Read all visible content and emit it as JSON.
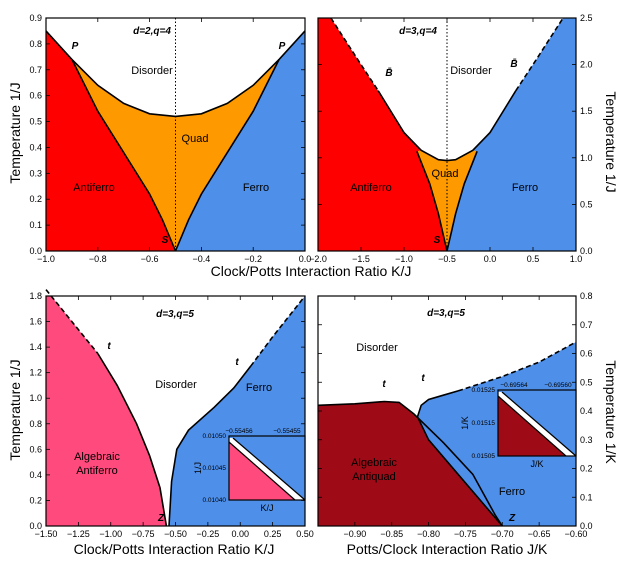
{
  "colors": {
    "antiferro": "#ff0000",
    "quad": "#ff9900",
    "ferro": "#4e8fe9",
    "disorder": "#ffffff",
    "algebraic_antiferro": "#ff4a7d",
    "algebraic_antiquad": "#9e0b17"
  },
  "chart_data": [
    {
      "type": "area",
      "panel": "top-left",
      "title": "d=2,q=4",
      "xlabel": "",
      "ylabel": "Temperature 1/J",
      "xlim": [
        -1.0,
        0.0
      ],
      "ylim": [
        0.0,
        0.9
      ],
      "xticks": [
        "−1.0",
        "−0.8",
        "−0.6",
        "−0.4",
        "−0.2",
        "0.0"
      ],
      "yticks": [
        "0.0",
        "0.1",
        "0.2",
        "0.3",
        "0.4",
        "0.5",
        "0.6",
        "0.7",
        "0.8",
        "0.9"
      ],
      "regions": [
        "Disorder",
        "Quad",
        "Antiferro",
        "Ferro"
      ],
      "point_labels": [
        "P",
        "P",
        "S"
      ],
      "boundaries": {
        "upper": [
          [
            -1.0,
            0.85
          ],
          [
            -0.9,
            0.74
          ],
          [
            -0.8,
            0.64
          ],
          [
            -0.7,
            0.57
          ],
          [
            -0.6,
            0.53
          ],
          [
            -0.5,
            0.52
          ],
          [
            -0.4,
            0.53
          ],
          [
            -0.3,
            0.57
          ],
          [
            -0.2,
            0.64
          ],
          [
            -0.1,
            0.74
          ],
          [
            0.0,
            0.85
          ]
        ],
        "left_quad": [
          [
            -0.9,
            0.74
          ],
          [
            -0.8,
            0.54
          ],
          [
            -0.7,
            0.38
          ],
          [
            -0.6,
            0.22
          ],
          [
            -0.55,
            0.12
          ],
          [
            -0.5,
            0.0
          ]
        ],
        "right_quad": [
          [
            -0.1,
            0.74
          ],
          [
            -0.2,
            0.54
          ],
          [
            -0.3,
            0.38
          ],
          [
            -0.4,
            0.22
          ],
          [
            -0.45,
            0.12
          ],
          [
            -0.5,
            0.0
          ]
        ]
      },
      "vertical_line_x": -0.5
    },
    {
      "type": "area",
      "panel": "top-right",
      "title": "d=3,q=4",
      "xlabel": "",
      "ylabel": "Temperature 1/J",
      "xlim": [
        -2.0,
        1.0
      ],
      "ylim": [
        0.0,
        2.5
      ],
      "xticks": [
        "−2.0",
        "−1.5",
        "−1.0",
        "−0.5",
        "0.0",
        "0.5",
        "1.0"
      ],
      "yticks": [
        "0.0",
        "0.5",
        "1.0",
        "1.5",
        "2.0",
        "2.5"
      ],
      "regions": [
        "Disorder",
        "Quad",
        "Antiferro",
        "Ferro"
      ],
      "point_labels": [
        "B̄",
        "B̄",
        "S"
      ],
      "boundaries": {
        "left_dashed": [
          [
            -1.85,
            2.5
          ],
          [
            -1.5,
            2.0
          ],
          [
            -1.3,
            1.72
          ]
        ],
        "left_solid": [
          [
            -1.3,
            1.72
          ],
          [
            -1.0,
            1.27
          ],
          [
            -0.8,
            1.08
          ],
          [
            -0.6,
            0.98
          ],
          [
            -0.5,
            0.97
          ]
        ],
        "right_solid": [
          [
            -0.5,
            0.97
          ],
          [
            -0.4,
            0.98
          ],
          [
            -0.2,
            1.08
          ],
          [
            0.0,
            1.27
          ],
          [
            0.3,
            1.72
          ]
        ],
        "right_dashed": [
          [
            0.3,
            1.72
          ],
          [
            0.5,
            2.0
          ],
          [
            0.85,
            2.5
          ]
        ],
        "left_quad": [
          [
            -0.85,
            1.07
          ],
          [
            -0.7,
            0.72
          ],
          [
            -0.6,
            0.4
          ],
          [
            -0.55,
            0.2
          ],
          [
            -0.5,
            0.0
          ]
        ],
        "right_quad": [
          [
            -0.15,
            1.07
          ],
          [
            -0.3,
            0.72
          ],
          [
            -0.4,
            0.4
          ],
          [
            -0.45,
            0.2
          ],
          [
            -0.5,
            0.0
          ]
        ]
      },
      "vertical_line_x": -0.5
    },
    {
      "type": "area",
      "panel": "bottom-left",
      "title": "d=3,q=5",
      "xlabel": "Clock/Potts Interaction Ratio K/J",
      "ylabel": "Temperature 1/J",
      "xlim": [
        -1.5,
        0.5
      ],
      "ylim": [
        0.0,
        1.8
      ],
      "xticks": [
        "−1.50",
        "−1.25",
        "−1.00",
        "−0.75",
        "−0.50",
        "−0.25",
        "0.00",
        "0.25",
        "0.50"
      ],
      "yticks": [
        "0.0",
        "0.2",
        "0.4",
        "0.6",
        "0.8",
        "1.0",
        "1.2",
        "1.4",
        "1.6",
        "1.8"
      ],
      "regions": [
        "Disorder",
        "Ferro",
        "Algebraic",
        "Antiferro"
      ],
      "point_labels": [
        "t",
        "t",
        "Z"
      ],
      "boundaries": {
        "left_dashed": [
          [
            -1.5,
            1.85
          ],
          [
            -1.3,
            1.6
          ],
          [
            -1.1,
            1.35
          ]
        ],
        "left_solid": [
          [
            -1.1,
            1.35
          ],
          [
            -0.95,
            1.1
          ],
          [
            -0.8,
            0.8
          ],
          [
            -0.7,
            0.55
          ],
          [
            -0.62,
            0.3
          ],
          [
            -0.57,
            0.0
          ]
        ],
        "ferro_solid": [
          [
            -0.55,
            0.0
          ],
          [
            -0.53,
            0.35
          ],
          [
            -0.49,
            0.6
          ],
          [
            -0.4,
            0.75
          ],
          [
            -0.2,
            0.93
          ],
          [
            -0.05,
            1.08
          ],
          [
            0.08,
            1.25
          ]
        ],
        "ferro_dashed": [
          [
            0.08,
            1.25
          ],
          [
            0.25,
            1.48
          ],
          [
            0.5,
            1.8
          ]
        ]
      },
      "inset": {
        "xlabel": "K/J",
        "ylabel": "1/J",
        "xticks": [
          "−0.55456",
          "−0.55455"
        ],
        "yticks": [
          "0.01040",
          "0.01045",
          "0.01050"
        ]
      }
    },
    {
      "type": "area",
      "panel": "bottom-right",
      "title": "d=3,q=5",
      "xlabel": "Potts/Clock Interaction Ratio J/K",
      "ylabel": "Temperature 1/K",
      "xlim": [
        -0.95,
        -0.6
      ],
      "ylim": [
        0.0,
        0.8
      ],
      "xticks": [
        "−0.90",
        "−0.85",
        "−0.80",
        "−0.75",
        "−0.70",
        "−0.65",
        "−0.60"
      ],
      "yticks": [
        "0.0",
        "0.1",
        "0.2",
        "0.3",
        "0.4",
        "0.5",
        "0.6",
        "0.7",
        "0.8"
      ],
      "regions": [
        "Disorder",
        "Ferro",
        "Algebraic",
        "Antiquad"
      ],
      "point_labels": [
        "t",
        "t",
        "Z"
      ],
      "boundaries": {
        "antiquad_top": [
          [
            -0.95,
            0.42
          ],
          [
            -0.9,
            0.425
          ],
          [
            -0.86,
            0.433
          ],
          [
            -0.84,
            0.43
          ],
          [
            -0.82,
            0.39
          ],
          [
            -0.78,
            0.29
          ],
          [
            -0.74,
            0.18
          ],
          [
            -0.71,
            0.04
          ],
          [
            -0.7,
            0.0
          ]
        ],
        "ferro_solid": [
          [
            -0.7,
            0.0
          ],
          [
            -0.76,
            0.18
          ],
          [
            -0.8,
            0.3
          ],
          [
            -0.815,
            0.38
          ],
          [
            -0.81,
            0.42
          ],
          [
            -0.8,
            0.44
          ],
          [
            -0.78,
            0.455
          ],
          [
            -0.76,
            0.47
          ]
        ],
        "ferro_dashed": [
          [
            -0.76,
            0.47
          ],
          [
            -0.7,
            0.52
          ],
          [
            -0.65,
            0.57
          ],
          [
            -0.6,
            0.64
          ]
        ]
      },
      "inset": {
        "xlabel": "J/K",
        "ylabel": "1/K",
        "xticks": [
          "−0.69564",
          "−0.69560"
        ],
        "yticks": [
          "0.01505",
          "0.01515",
          "0.01525"
        ]
      }
    }
  ],
  "text": {
    "tl_title": "d=2,q=4",
    "tr_title": "d=3,q=4",
    "bl_title": "d=3,q=5",
    "br_title": "d=3,q=5",
    "disorder": "Disorder",
    "quad": "Quad",
    "antiferro": "Antiferro",
    "ferro": "Ferro",
    "algebraic": "Algebraic",
    "antiquad": "Antiquad",
    "P": "P",
    "S": "S",
    "Bbar": "B̄",
    "t": "t",
    "Z": "Z",
    "ylab_1J": "Temperature 1/J",
    "ylab_1K": "Temperature 1/K",
    "xlab_top": "Clock/Potts Interaction Ratio K/J",
    "xlab_bl": "Clock/Potts Interaction Ratio K/J",
    "xlab_br": "Potts/Clock Interaction Ratio J/K"
  }
}
